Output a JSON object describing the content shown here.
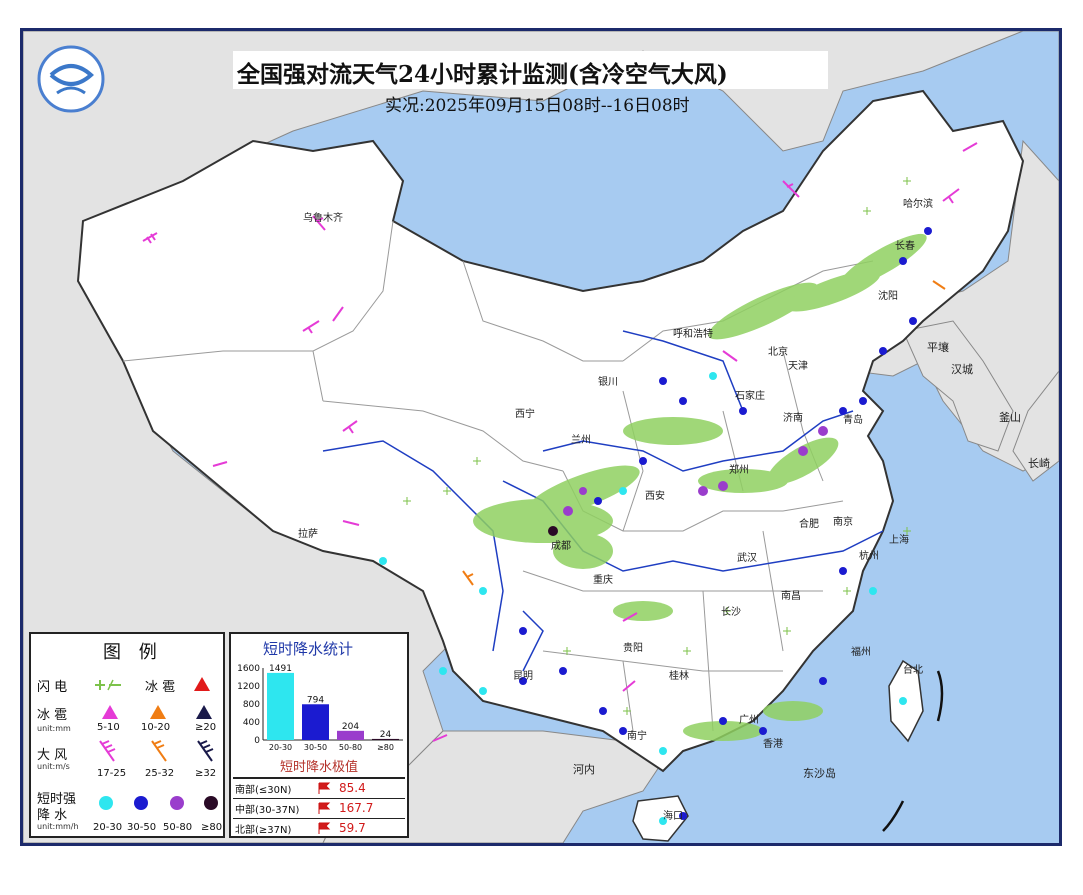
{
  "title": "全国强对流天气24小时累计监测(含冷空气大风)",
  "subtitle": "实况:2025年09月15日08时--16日08时",
  "cities": [
    "乌鲁木齐",
    "哈尔滨",
    "长春",
    "沈阳",
    "呼和浩特",
    "北京",
    "天津",
    "石家庄",
    "银川",
    "西宁",
    "济南",
    "青岛",
    "郑州",
    "兰州",
    "拉萨",
    "成都",
    "西安",
    "合肥",
    "南京",
    "武汉",
    "重庆",
    "长沙",
    "南昌",
    "杭州",
    "上海",
    "福州",
    "台北",
    "贵阳",
    "昆明",
    "南宁",
    "桂林",
    "广州",
    "海口",
    "香港"
  ],
  "places": [
    "平壤",
    "汉城",
    "釜山",
    "长崎",
    "河内",
    "东沙岛"
  ],
  "legend": {
    "title": "图 例",
    "lightning": {
      "label": "闪 电",
      "hail_label": "冰 雹"
    },
    "hail": {
      "label": "冰 雹",
      "unit": "unit:mm",
      "ranges": [
        "5-10",
        "10-20",
        "≥20"
      ],
      "colors": [
        "#e53bd6",
        "#f07d14",
        "#1a1a4a"
      ]
    },
    "wind": {
      "label": "大 风",
      "unit": "unit:m/s",
      "ranges": [
        "17-25",
        "25-32",
        "≥32"
      ],
      "colors": [
        "#e53bd6",
        "#f07d14",
        "#1a1a4a"
      ]
    },
    "rain": {
      "label_line1": "短时强",
      "label_line2": "降    水",
      "unit": "unit:mm/h",
      "ranges": [
        "20-30",
        "30-50",
        "50-80",
        "≥80"
      ],
      "colors": [
        "#2ee6ef",
        "#1b1bd0",
        "#9a3dcc",
        "#2a0a26"
      ]
    }
  },
  "stats": {
    "title": "短时降水统计",
    "chart_data": {
      "type": "bar",
      "categories": [
        "20-30",
        "30-50",
        "50-80",
        "≥80"
      ],
      "values": [
        1491,
        794,
        204,
        24
      ],
      "ylim": [
        0,
        1600
      ],
      "yticks": [
        "1600",
        "1200",
        "800",
        "400",
        "0"
      ],
      "colors": [
        "#2ee6ef",
        "#1b1bd0",
        "#9a3dcc",
        "#2a0a26"
      ]
    },
    "extreme_title": "短时降水极值",
    "extremes": [
      {
        "region": "南部(≤30N)",
        "value": "85.4"
      },
      {
        "region": "中部(30-37N)",
        "value": "167.7"
      },
      {
        "region": "北部(≥37N)",
        "value": "59.7"
      }
    ]
  },
  "colors": {
    "sea": "#a7cbf1",
    "china_land": "#ffffff",
    "foreign_land": "#e3e3e3",
    "rain_band": "#8fd060"
  }
}
